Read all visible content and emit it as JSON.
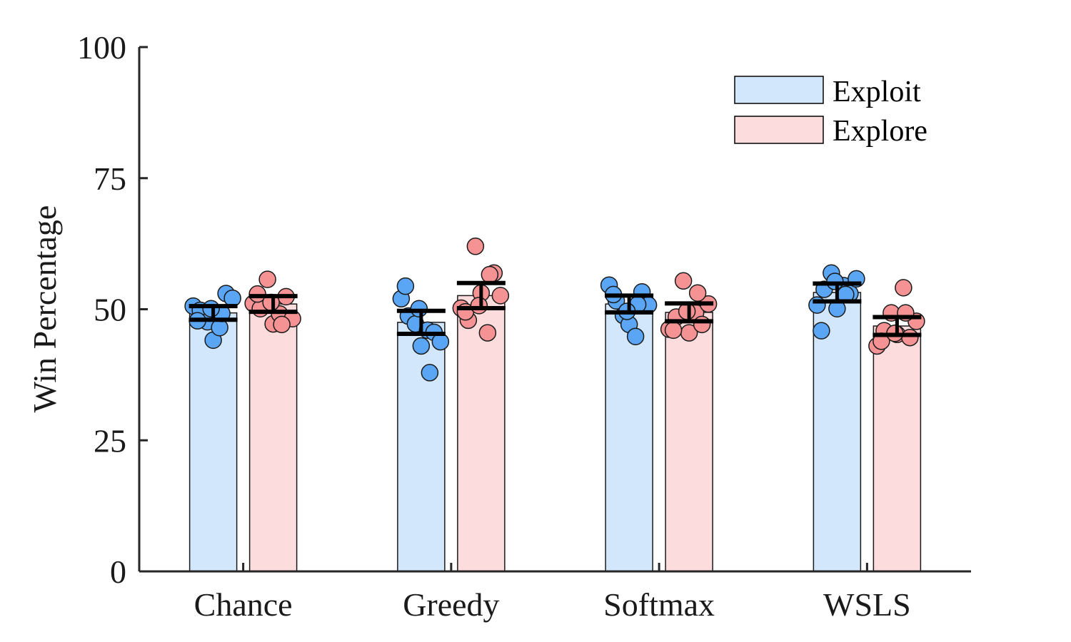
{
  "chart_data": {
    "type": "bar",
    "title": "",
    "xlabel": "",
    "ylabel": "Win Percentage",
    "ylim": [
      0,
      100
    ],
    "yticks": [
      "0",
      "25",
      "50",
      "75",
      "100"
    ],
    "categories": [
      "Chance",
      "Greedy",
      "Softmax",
      "WSLS"
    ],
    "grid": false,
    "legend_position": "top-right",
    "series": [
      {
        "name": "Exploit",
        "fill_color": "#d3e7fc",
        "point_color": "#5aa6f4",
        "values": [
          49.3,
          47.5,
          51.0,
          53.2
        ],
        "error": [
          1.3,
          2.2,
          1.6,
          1.7
        ],
        "points": [
          [
            50.6,
            49.8,
            47.6,
            44.1,
            46.5,
            53.0,
            52.1,
            47.8,
            49.2,
            50.1
          ],
          [
            52.0,
            48.7,
            47.2,
            43.0,
            46.0,
            45.6,
            43.8,
            54.4,
            37.9,
            50.1
          ],
          [
            54.6,
            51.6,
            48.8,
            47.1,
            44.8,
            53.3,
            50.8,
            52.8,
            50.9,
            49.6
          ],
          [
            50.8,
            53.8,
            56.9,
            50.1,
            54.5,
            53.0,
            55.8,
            45.9,
            52.8,
            55.3
          ]
        ]
      },
      {
        "name": "Explore",
        "fill_color": "#fddcdd",
        "point_color": "#f49294",
        "values": [
          51.0,
          52.6,
          49.4,
          46.8
        ],
        "error": [
          1.5,
          2.4,
          1.7,
          1.7
        ],
        "points": [
          [
            51.1,
            50.1,
            55.7,
            47.2,
            49.1,
            52.4,
            48.2,
            52.9,
            47.1,
            51.3
          ],
          [
            50.2,
            47.9,
            62.0,
            53.1,
            45.5,
            56.9,
            52.6,
            49.5,
            56.6,
            50.7
          ],
          [
            46.2,
            48.5,
            55.4,
            45.5,
            49.3,
            47.1,
            51.0,
            46.0,
            53.1,
            49.6
          ],
          [
            43.0,
            45.9,
            49.3,
            45.2,
            54.1,
            44.6,
            47.7,
            43.9,
            49.3,
            45.4
          ]
        ]
      }
    ]
  }
}
